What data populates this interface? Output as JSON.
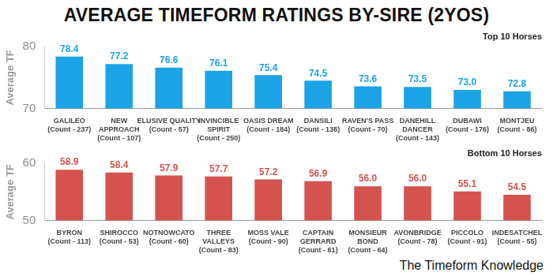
{
  "title": "AVERAGE TIMEFORM RATINGS BY-SIRE (2YOS)",
  "footer": "The Timeform Knowledge",
  "chart_data": [
    {
      "type": "bar",
      "title": "Top 10 Horses",
      "y_label": "Average TF",
      "categories": [
        "GALILEO\n(Count - 237)",
        "NEW\nAPPROACH\n(Count - 107)",
        "ELUSIVE QUALITY\n(Count - 57)",
        "INVINCIBLE\nSPIRIT\n(Count - 250)",
        "OASIS DREAM\n(Count - 184)",
        "DANSILI\n(Count - 138)",
        "RAVEN'S PASS\n(Count - 70)",
        "DANEHILL\nDANCER\n(Count - 143)",
        "DUBAWI\n(Count - 176)",
        "MONTJEU\n(Count - 86)"
      ],
      "values": [
        78.4,
        77.2,
        76.6,
        76.1,
        75.4,
        74.5,
        73.6,
        73.5,
        73.0,
        72.8
      ],
      "value_labels": [
        "78.4",
        "77.2",
        "76.6",
        "76.1",
        "75.4",
        "74.5",
        "73.6",
        "73.5",
        "73.0",
        "72.8"
      ],
      "color": "#1ba3e6",
      "ylim": [
        70,
        80
      ],
      "yticks": [
        70,
        80
      ],
      "grid": false,
      "data_labels": true
    },
    {
      "type": "bar",
      "title": "Bottom 10 Horses",
      "y_label": "Average TF",
      "categories": [
        "BYRON\n(Count - 113)",
        "SHIROCCO\n(Count - 53)",
        "NOTNOWCATO\n(Count - 60)",
        "THREE\nVALLEYS\n(Count - 83)",
        "MOSS VALE\n(Count - 90)",
        "CAPTAIN\nGERRARD\n(Count - 61)",
        "MONSIEUR\nBOND\n(Count - 64)",
        "AVONBRIDGE\n(Count - 78)",
        "PICCOLO\n(Count - 91)",
        "INDESATCHEL\n(Count - 55)"
      ],
      "values": [
        58.9,
        58.4,
        57.9,
        57.7,
        57.2,
        56.9,
        56.0,
        56.0,
        55.1,
        54.5
      ],
      "value_labels": [
        "58.9",
        "58.4",
        "57.9",
        "57.7",
        "57.2",
        "56.9",
        "56.0",
        "56.0",
        "55.1",
        "54.5"
      ],
      "color": "#d4534f",
      "ylim": [
        50,
        60
      ],
      "yticks": [
        50,
        60
      ],
      "grid": false,
      "data_labels": true
    }
  ]
}
